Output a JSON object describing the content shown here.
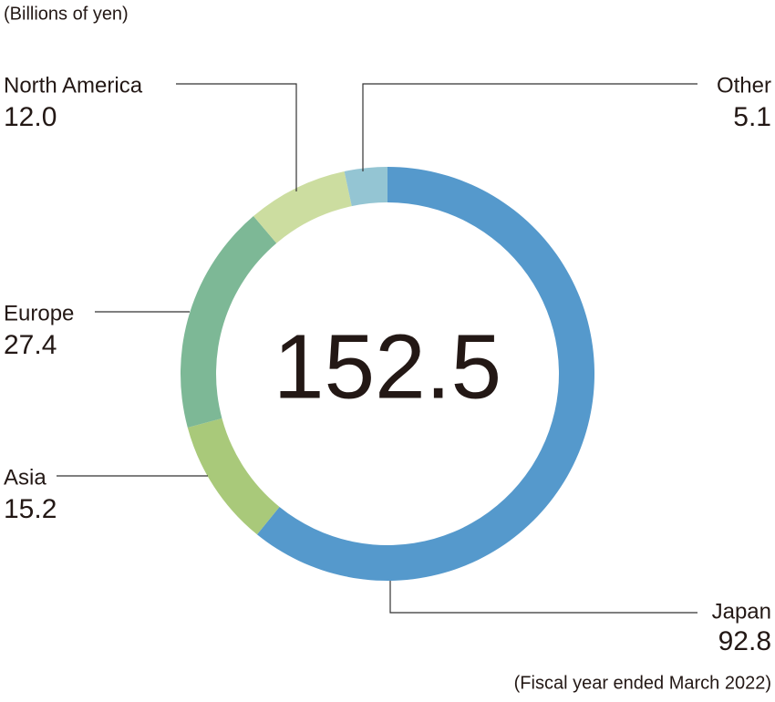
{
  "chart_data": {
    "type": "donut",
    "subtitle": "(Billions of yen)",
    "note": "(Fiscal year ended March 2022)",
    "total": 152.5,
    "categories": [
      "Japan",
      "Asia",
      "Europe",
      "North America",
      "Other"
    ],
    "values": [
      92.8,
      15.2,
      27.4,
      12.0,
      5.1
    ],
    "value_labels": [
      "92.8",
      "15.2",
      "27.4",
      "12.0",
      "5.1"
    ],
    "colors": [
      "#5599cc",
      "#a9c97a",
      "#7db896",
      "#ccdda0",
      "#94c5d3"
    ]
  }
}
